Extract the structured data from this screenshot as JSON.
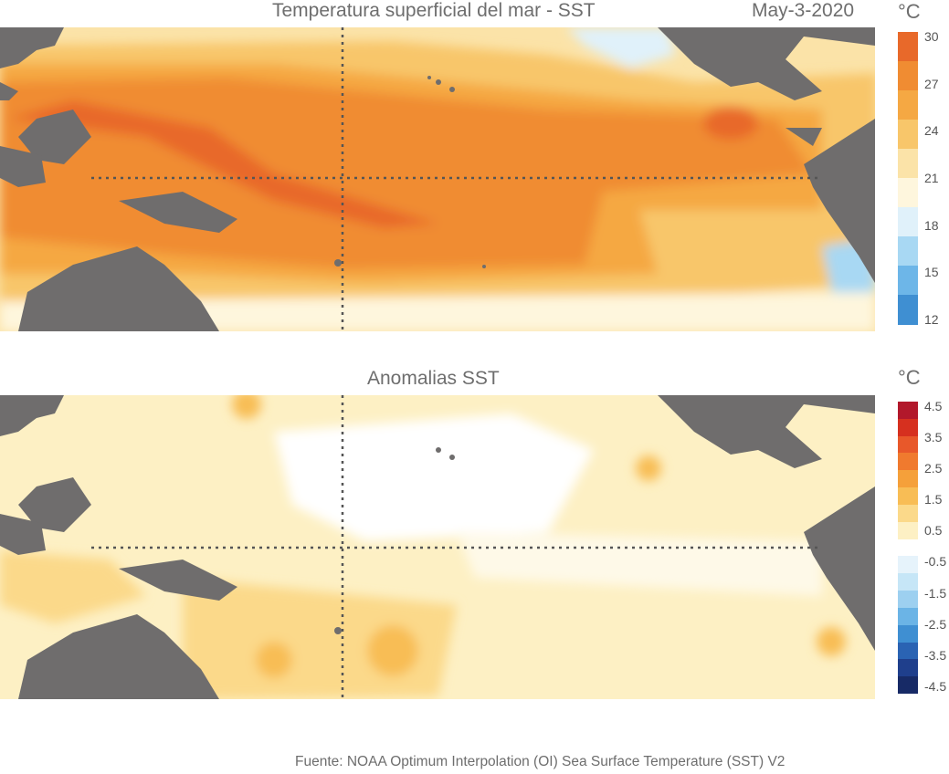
{
  "top_panel": {
    "title": "Temperatura superficial del mar - SST",
    "date": "May-3-2020",
    "unit": "°C",
    "colorbar": {
      "ticks": [
        "30",
        "27",
        "24",
        "21",
        "18",
        "15",
        "12"
      ],
      "colors": [
        "#e8692a",
        "#f08c32",
        "#f5a843",
        "#f8c66a",
        "#fbe3a8",
        "#fef6dd",
        "#e0f1fa",
        "#a8d8f3",
        "#6db6e8",
        "#3f8fd2"
      ]
    }
  },
  "bottom_panel": {
    "title": "Anomalias SST",
    "unit": "°C",
    "colorbar": {
      "ticks": [
        "4.5",
        "3.5",
        "2.5",
        "1.5",
        "0.5",
        "-0.5",
        "-1.5",
        "-2.5",
        "-3.5",
        "-4.5"
      ],
      "colors": [
        "#b2182b",
        "#d6301f",
        "#e8582a",
        "#f07a2e",
        "#f5a03a",
        "#f8bd55",
        "#fbd98a",
        "#fdf0c4",
        "#ffffff",
        "#e6f3fb",
        "#c6e6f7",
        "#9dd0f0",
        "#6bb4e6",
        "#3f8fd2",
        "#2a63b3",
        "#1f3f8c",
        "#172a66"
      ]
    },
    "colors": {
      "land": "#6f6d6d",
      "grid": "#555555"
    }
  },
  "source": "Fuente: NOAA Optimum Interpolation (OI) Sea Surface Temperature (SST) V2"
}
